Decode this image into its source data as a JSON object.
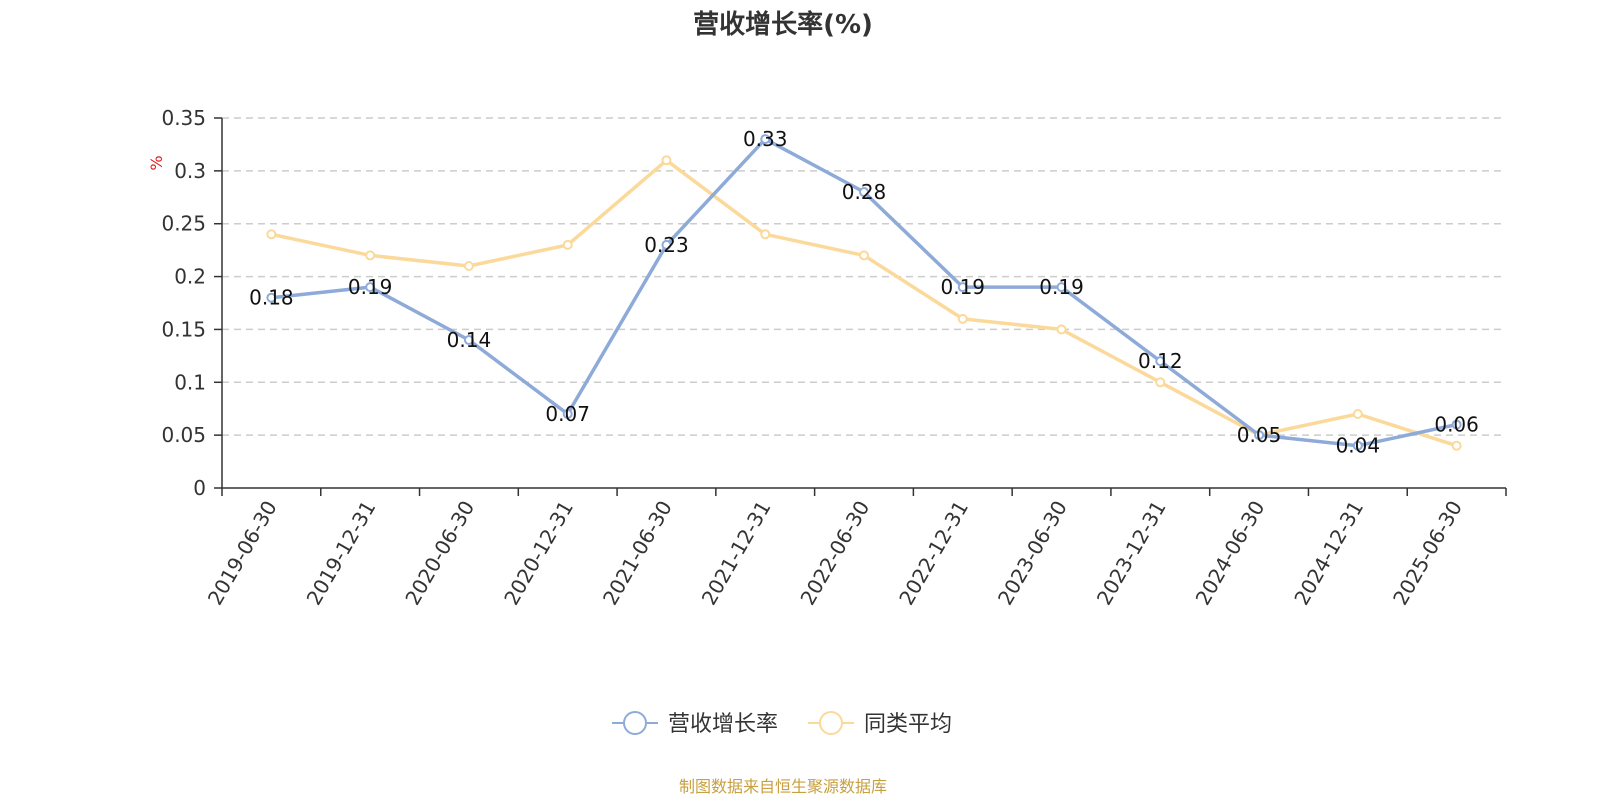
{
  "chart_data": {
    "type": "line",
    "title": "营收增长率(%)",
    "ylabel": "%",
    "ylim": [
      0,
      0.35
    ],
    "yticks": [
      "0",
      "0.05",
      "0.1",
      "0.15",
      "0.2",
      "0.25",
      "0.3",
      "0.35"
    ],
    "categories": [
      "2019-06-30",
      "2019-12-31",
      "2020-06-30",
      "2020-12-31",
      "2021-06-30",
      "2021-12-31",
      "2022-06-30",
      "2022-12-31",
      "2023-06-30",
      "2023-12-31",
      "2024-06-30",
      "2024-12-31",
      "2025-06-30"
    ],
    "series": [
      {
        "name": "营收增长率",
        "color": "#8eaad8",
        "values": [
          0.18,
          0.19,
          0.14,
          0.07,
          0.23,
          0.33,
          0.28,
          0.19,
          0.19,
          0.12,
          0.05,
          0.04,
          0.06
        ],
        "labels": [
          "0.18",
          "0.19",
          "0.14",
          "0.07",
          "0.23",
          "0.33",
          "0.28",
          "0.19",
          "0.19",
          "0.12",
          "0.05",
          "0.04",
          "0.06"
        ]
      },
      {
        "name": "同类平均",
        "color": "#fbd99a",
        "values": [
          0.24,
          0.22,
          0.21,
          0.23,
          0.31,
          0.24,
          0.22,
          0.16,
          0.15,
          0.1,
          0.05,
          0.07,
          0.04
        ]
      }
    ],
    "grid": true,
    "legend_position": "bottom-center",
    "axis_color": "#333333",
    "grid_color": "#cccccc",
    "unit_color": "#e02020"
  },
  "footer": {
    "source": "制图数据来自恒生聚源数据库",
    "color": "#c8a040"
  }
}
